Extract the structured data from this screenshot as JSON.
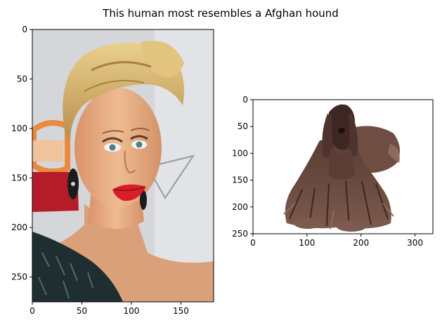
{
  "figure": {
    "title": "This human most resembles a Afghan hound"
  },
  "chart_data": [
    {
      "type": "image",
      "subject": "human",
      "xlim": [
        0,
        183
      ],
      "ylim": [
        275,
        0
      ],
      "xticks": [
        0,
        50,
        100,
        150
      ],
      "yticks": [
        0,
        50,
        100,
        150,
        200,
        250
      ],
      "tick_labels_x": [
        "0",
        "50",
        "100",
        "150"
      ],
      "tick_labels_y": [
        "0",
        "50",
        "100",
        "150",
        "200",
        "250"
      ]
    },
    {
      "type": "image",
      "subject": "dog",
      "xlim": [
        0,
        333
      ],
      "ylim": [
        250,
        0
      ],
      "xticks": [
        0,
        100,
        200,
        300
      ],
      "yticks": [
        0,
        50,
        100,
        150,
        200,
        250
      ],
      "tick_labels_x": [
        "0",
        "100",
        "200",
        "300"
      ],
      "tick_labels_y": [
        "0",
        "50",
        "100",
        "150",
        "200",
        "250"
      ]
    }
  ],
  "colors": {
    "hair_blonde": "#d9b46a",
    "hair_shadow": "#a8803f",
    "skin": "#e6ad85",
    "skin_shadow": "#c98a61",
    "lips": "#d81e2b",
    "dress": "#1f2e30",
    "backdrop": "#d8d8dc",
    "banner_orange": "#e98a3c",
    "banner_red": "#b51c2a",
    "dog_fur": "#6a4a40",
    "dog_fur_dark": "#3d2722",
    "dog_fur_light": "#8e6a5d"
  }
}
